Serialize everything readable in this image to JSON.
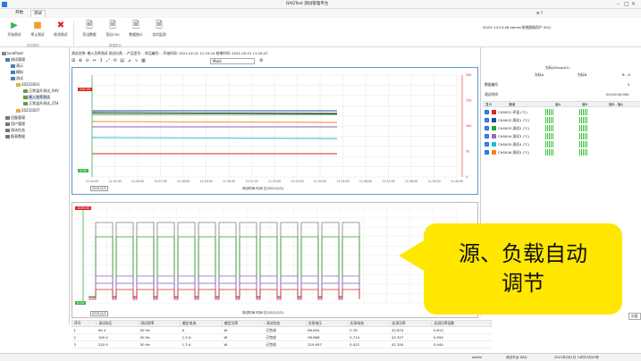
{
  "window": {
    "title": "DAQTest 测试管理平台"
  },
  "tabs": [
    "开始",
    "测试"
  ],
  "ribbon": {
    "buttons": [
      "开始测试",
      "停止测试",
      "取消测试",
      "导出数据",
      "导出CSV",
      "数据统计",
      "实时监测"
    ],
    "groups": [
      "测试操作",
      "数据统计"
    ]
  },
  "right_header": "02/01 14:13:48  admin(系统超级用户 001)",
  "tree": {
    "root": "localhost",
    "items": [
      "测试管理",
      "演示",
      "模拟",
      "测试",
      "20210201",
      "正常温升测试_94V",
      "输入效率测试",
      "正常温升测试_254",
      "20210207",
      "设备管理",
      "用户管理",
      "测试任务",
      "报表数据"
    ]
  },
  "info": "测试名称:  输入功率测试  测试分类: -  产品型号: -  样品编号: -  开始时间: 2021-02-01 11:23:24  结束时间: 2021-02-01 11:45:47",
  "chart_tools": {
    "mark_field": "Mark"
  },
  "chart_top": {
    "y_badge_top": "200.00",
    "y_badge_bottom": "0.00",
    "right_ticks": [
      "200",
      "150",
      "100",
      "50",
      "0"
    ],
    "x_ticks": [
      "11:24:00",
      "11:25:00",
      "11:26:00",
      "11:27:00",
      "11:28:00",
      "11:29:00",
      "11:30:00",
      "11:31:00",
      "11:32:00",
      "11:33:00",
      "11:34:00",
      "11:35:00",
      "11:36:00",
      "11:37:00",
      "11:38:00",
      "11:39:00",
      "11:40:00"
    ],
    "x_caption": "测试时间  时间 日(2021/2/1)",
    "date_label": "2021/2/1"
  },
  "chart_bottom": {
    "y_badge_top": "1000.00",
    "y_badge_bottom": "0.00",
    "x_caption": "测试时间  时间 日(2021/2/1)",
    "date_label": "2021/2/1"
  },
  "right_panel": {
    "group_title": "光标(Group01)",
    "col_a": "光标A",
    "col_b": "光标B",
    "col_diff": "B - A",
    "row1_label": "数据编号",
    "row1_diff": "0",
    "row2_label": "测试时间",
    "row2_diff": "00:00:00.000",
    "table_headers": [
      "显示",
      "通道",
      "值A",
      "值B",
      "值B - 值A"
    ],
    "channels": [
      {
        "name": "CH0001 环温 (°C)",
        "color": "#d62728"
      },
      {
        "name": "CH0002 测试1 (°C)",
        "color": "#1f4e9c"
      },
      {
        "name": "CH0003 测试2 (°C)",
        "color": "#2ca02c"
      },
      {
        "name": "CH0004 测试3 (°C)",
        "color": "#9467bd"
      },
      {
        "name": "CH0005 测试4 (°C)",
        "color": "#17becf"
      },
      {
        "name": "CH0006 测试5 (°C)",
        "color": "#ff7f0e"
      }
    ],
    "side_button": "分组"
  },
  "bottom_table": {
    "headers": [
      "序号",
      "测试电压",
      "测试频率",
      "额定电流",
      "额定功率",
      "测试状态",
      "实测电压",
      "实测电流",
      "实测功率",
      "实测功率因数"
    ],
    "rows": [
      [
        "1",
        "90 V",
        "50 Hz",
        "A",
        "W",
        "已完成",
        "89.854",
        "0.78",
        "42.874",
        "0.613"
      ],
      [
        "2",
        "100 V",
        "50 Hz",
        "1.3 A",
        "W",
        "已完成",
        "99.866",
        "0.714",
        "42.327",
        "0.594"
      ],
      [
        "3",
        "220 V",
        "50 Hz",
        "1.3 A",
        "W",
        "已完成",
        "219.957",
        "0.422",
        "41.204",
        "0.444"
      ]
    ]
  },
  "status": {
    "user": "admin",
    "company": "测试平台 DAQ",
    "time": "2021年2月1日 14时13分47秒"
  },
  "callout": {
    "line1": "源、负载自动",
    "line2": "调节"
  }
}
